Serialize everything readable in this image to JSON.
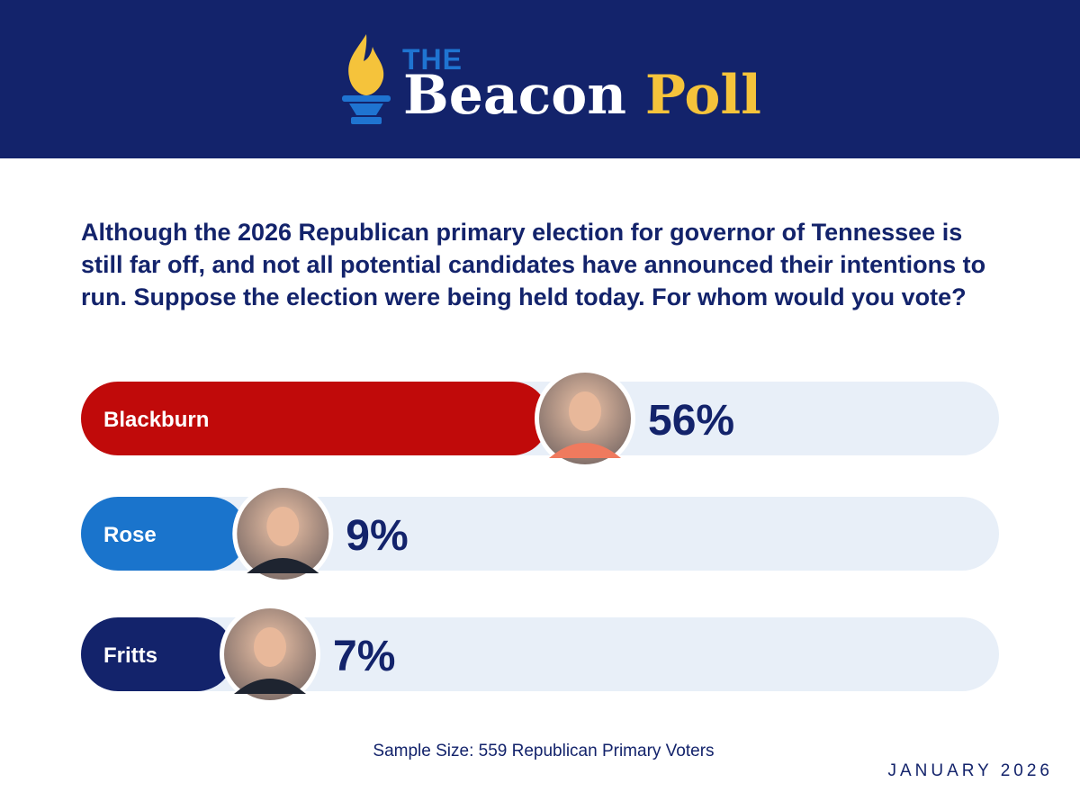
{
  "header": {
    "logo_icon": "torch-icon",
    "logo_the": "THE",
    "logo_beacon": "Beacon",
    "logo_poll": "Poll",
    "background_color": "#13236b",
    "accent_color": "#f5c33b"
  },
  "chart_data": {
    "type": "bar",
    "orientation": "horizontal",
    "title": "Although the 2026 Republican primary election for governor of Tennessee is still far off, and not all potential candidates have announced their intentions to run. Suppose the election were being held today. For whom would you vote?",
    "categories": [
      "Blackburn",
      "Rose",
      "Fritts"
    ],
    "values": [
      56,
      9,
      7
    ],
    "value_labels": [
      "56%",
      "9%",
      "7%"
    ],
    "colors": [
      "#c00a0a",
      "#1a74cc",
      "#13236b"
    ],
    "track_color": "#e8eff8",
    "candidate_photos": [
      "portrait-blackburn",
      "portrait-rose",
      "portrait-fritts"
    ],
    "grid": false,
    "legend": "none"
  },
  "footer": {
    "sample_size": "Sample Size: 559 Republican Primary Voters",
    "date": "JANUARY 2026"
  }
}
